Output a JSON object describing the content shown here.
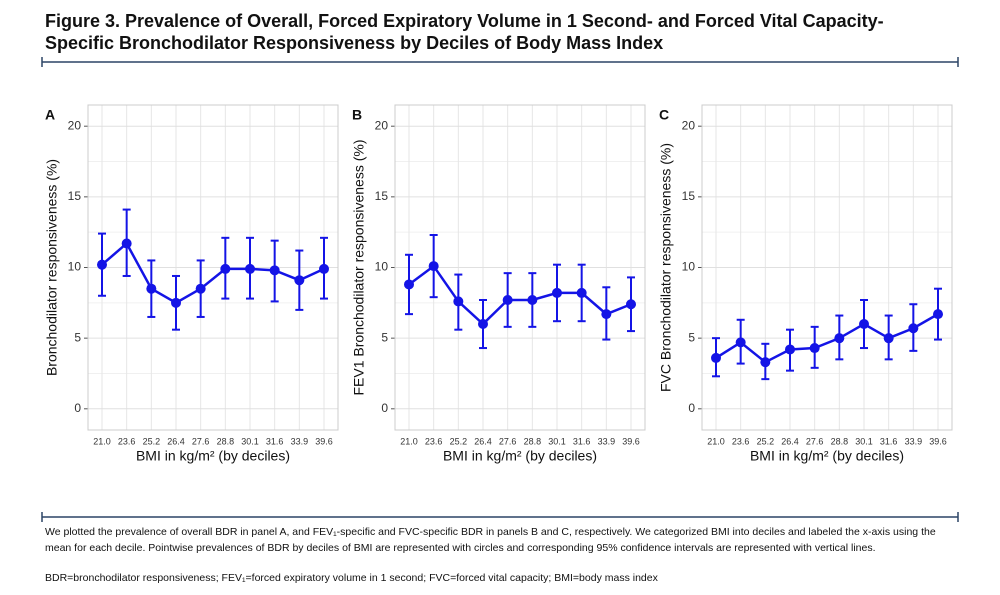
{
  "figure_title": "Figure 3. Prevalence of Overall, Forced Expiratory Volume in 1 Second- and Forced Vital Capacity-Specific Bronchodilator Responsiveness by Deciles of Body Mass Index",
  "chart_data": [
    {
      "type": "line",
      "panel": "A",
      "ylabel": "Bronchodilator responsiveness (%)",
      "xlabel": "BMI in kg/m² (by deciles)",
      "categories": [
        "21.0",
        "23.6",
        "25.2",
        "26.4",
        "27.6",
        "28.8",
        "30.1",
        "31.6",
        "33.9",
        "39.6"
      ],
      "series": [
        {
          "color": "#1414e6",
          "values": [
            10.2,
            11.7,
            8.5,
            7.5,
            8.5,
            9.9,
            9.9,
            9.8,
            9.1,
            9.9
          ],
          "lower": [
            8.0,
            9.4,
            6.5,
            5.6,
            6.5,
            7.8,
            7.8,
            7.6,
            7.0,
            7.8
          ],
          "upper": [
            12.4,
            14.1,
            10.5,
            9.4,
            10.5,
            12.1,
            12.1,
            11.9,
            11.2,
            12.1
          ]
        }
      ],
      "ylim": [
        -1.5,
        21.5
      ],
      "yticks": [
        0,
        5,
        10,
        15,
        20
      ],
      "grid": true
    },
    {
      "type": "line",
      "panel": "B",
      "ylabel": "FEV1 Bronchodilator responsiveness (%)",
      "xlabel": "BMI in kg/m² (by deciles)",
      "categories": [
        "21.0",
        "23.6",
        "25.2",
        "26.4",
        "27.6",
        "28.8",
        "30.1",
        "31.6",
        "33.9",
        "39.6"
      ],
      "series": [
        {
          "color": "#1414e6",
          "values": [
            8.8,
            10.1,
            7.6,
            6.0,
            7.7,
            7.7,
            8.2,
            8.2,
            6.7,
            7.4
          ],
          "lower": [
            6.7,
            7.9,
            5.6,
            4.3,
            5.8,
            5.8,
            6.2,
            6.2,
            4.9,
            5.5
          ],
          "upper": [
            10.9,
            12.3,
            9.5,
            7.7,
            9.6,
            9.6,
            10.2,
            10.2,
            8.6,
            9.3
          ]
        }
      ],
      "ylim": [
        -1.5,
        21.5
      ],
      "yticks": [
        0,
        5,
        10,
        15,
        20
      ],
      "grid": true
    },
    {
      "type": "line",
      "panel": "C",
      "ylabel": "FVC Bronchodilator responsiveness (%)",
      "xlabel": "BMI in kg/m² (by deciles)",
      "categories": [
        "21.0",
        "23.6",
        "25.2",
        "26.4",
        "27.6",
        "28.8",
        "30.1",
        "31.6",
        "33.9",
        "39.6"
      ],
      "series": [
        {
          "color": "#1414e6",
          "values": [
            3.6,
            4.7,
            3.3,
            4.2,
            4.3,
            5.0,
            6.0,
            5.0,
            5.7,
            6.7
          ],
          "lower": [
            2.3,
            3.2,
            2.1,
            2.7,
            2.9,
            3.5,
            4.3,
            3.5,
            4.1,
            4.9
          ],
          "upper": [
            5.0,
            6.3,
            4.6,
            5.6,
            5.8,
            6.6,
            7.7,
            6.6,
            7.4,
            8.5
          ]
        }
      ],
      "ylim": [
        -1.5,
        21.5
      ],
      "yticks": [
        0,
        5,
        10,
        15,
        20
      ],
      "grid": true
    }
  ],
  "notes": [
    "We plotted the prevalence of overall BDR in panel A, and FEV₁-specific and FVC-specific BDR in panels B and C, respectively. We categorized BMI into deciles and labeled the x-axis using the mean for each decile. Pointwise prevalences of BDR by deciles of BMI are represented with circles and corresponding 95% confidence intervals are represented with vertical lines.",
    "BDR=bronchodilator responsiveness; FEV₁=forced expiratory volume in 1 second; FVC=forced vital capacity; BMI=body mass index"
  ]
}
